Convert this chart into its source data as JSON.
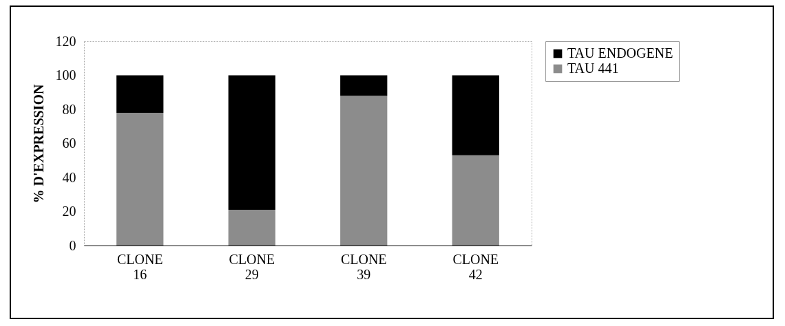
{
  "chart_data": {
    "type": "bar",
    "stacked": true,
    "ylabel": "% D'EXPRESSION",
    "categories": [
      "CLONE 16",
      "CLONE 29",
      "CLONE 39",
      "CLONE 42"
    ],
    "series": [
      {
        "name": "TAU 441",
        "color": "#8c8c8c",
        "values": [
          78,
          21,
          88,
          53
        ]
      },
      {
        "name": "TAU ENDOGENE",
        "color": "#000000",
        "values": [
          22,
          79,
          12,
          47
        ]
      }
    ],
    "ylim": [
      0,
      120
    ],
    "yticks": [
      0,
      20,
      40,
      60,
      80,
      100,
      120
    ],
    "legend": "right"
  }
}
